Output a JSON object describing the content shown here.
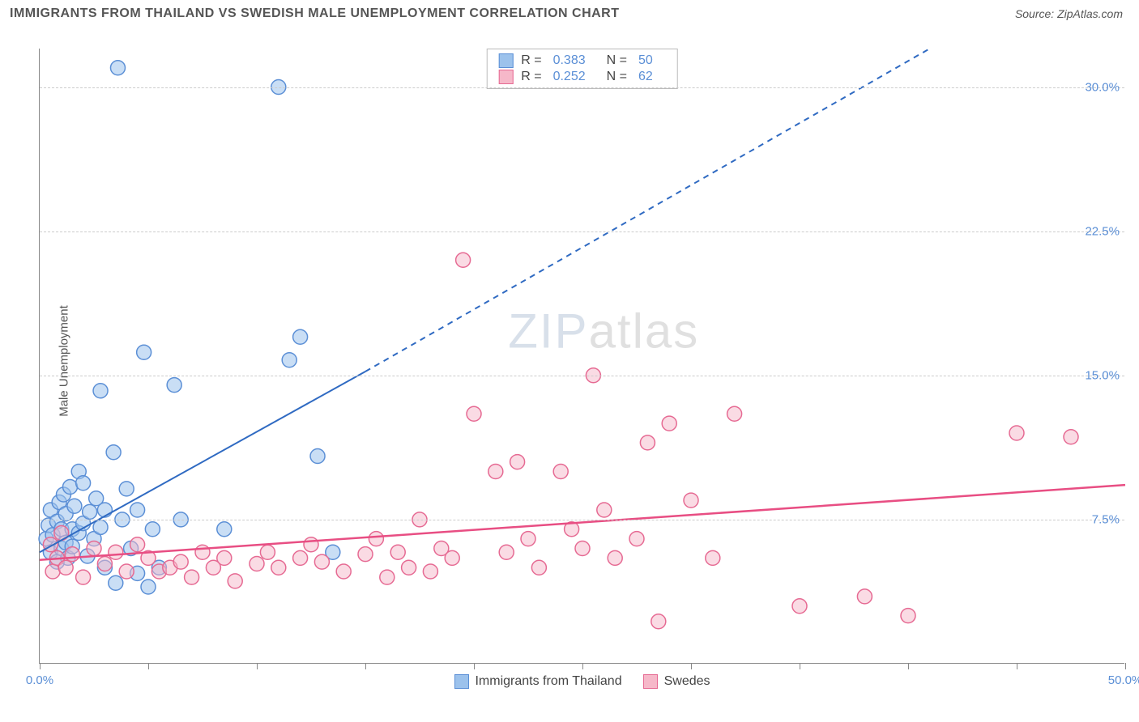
{
  "title": "IMMIGRANTS FROM THAILAND VS SWEDISH MALE UNEMPLOYMENT CORRELATION CHART",
  "source": "Source: ZipAtlas.com",
  "y_axis_label": "Male Unemployment",
  "watermark_a": "ZIP",
  "watermark_b": "atlas",
  "chart": {
    "type": "scatter",
    "xlim": [
      0,
      50
    ],
    "ylim": [
      0,
      32
    ],
    "x_ticks": [
      0,
      5,
      10,
      15,
      20,
      25,
      30,
      35,
      40,
      45,
      50
    ],
    "x_tick_labels": {
      "0": "0.0%",
      "50": "50.0%"
    },
    "y_grid": [
      7.5,
      15.0,
      22.5,
      30.0
    ],
    "y_tick_labels": [
      "7.5%",
      "15.0%",
      "22.5%",
      "30.0%"
    ],
    "background_color": "#ffffff",
    "grid_color": "#cccccc",
    "axis_color": "#888888",
    "marker_radius": 9,
    "marker_stroke_width": 1.5,
    "series": [
      {
        "name": "Immigrants from Thailand",
        "R": "0.383",
        "N": "50",
        "fill": "#9cc2ec",
        "stroke": "#5b8fd6",
        "fill_opacity": 0.55,
        "trend": {
          "solid": [
            [
              0,
              5.8
            ],
            [
              15,
              15.2
            ]
          ],
          "dashed": [
            [
              15,
              15.2
            ],
            [
              41,
              32.0
            ]
          ],
          "color": "#2f6ac2",
          "width": 2
        },
        "points": [
          [
            0.3,
            6.5
          ],
          [
            0.4,
            7.2
          ],
          [
            0.5,
            5.8
          ],
          [
            0.5,
            8.0
          ],
          [
            0.6,
            6.7
          ],
          [
            0.8,
            7.4
          ],
          [
            0.8,
            5.3
          ],
          [
            0.9,
            8.4
          ],
          [
            1.0,
            7.0
          ],
          [
            1.0,
            6.0
          ],
          [
            1.1,
            8.8
          ],
          [
            1.2,
            7.8
          ],
          [
            1.2,
            6.3
          ],
          [
            1.3,
            5.5
          ],
          [
            1.4,
            9.2
          ],
          [
            1.5,
            7.0
          ],
          [
            1.5,
            6.1
          ],
          [
            1.6,
            8.2
          ],
          [
            1.8,
            10.0
          ],
          [
            1.8,
            6.8
          ],
          [
            2.0,
            7.3
          ],
          [
            2.0,
            9.4
          ],
          [
            2.2,
            5.6
          ],
          [
            2.3,
            7.9
          ],
          [
            2.5,
            6.5
          ],
          [
            2.6,
            8.6
          ],
          [
            2.8,
            7.1
          ],
          [
            2.8,
            14.2
          ],
          [
            3.0,
            8.0
          ],
          [
            3.0,
            5.0
          ],
          [
            3.4,
            11.0
          ],
          [
            3.5,
            4.2
          ],
          [
            3.6,
            31.0
          ],
          [
            3.8,
            7.5
          ],
          [
            4.0,
            9.1
          ],
          [
            4.2,
            6.0
          ],
          [
            4.5,
            4.7
          ],
          [
            4.5,
            8.0
          ],
          [
            4.8,
            16.2
          ],
          [
            5.0,
            4.0
          ],
          [
            5.2,
            7.0
          ],
          [
            5.5,
            5.0
          ],
          [
            6.2,
            14.5
          ],
          [
            6.5,
            7.5
          ],
          [
            8.5,
            7.0
          ],
          [
            11.0,
            30.0
          ],
          [
            11.5,
            15.8
          ],
          [
            12.0,
            17.0
          ],
          [
            12.8,
            10.8
          ],
          [
            13.5,
            5.8
          ]
        ]
      },
      {
        "name": "Swedes",
        "R": "0.252",
        "N": "62",
        "fill": "#f6b8c9",
        "stroke": "#e66a93",
        "fill_opacity": 0.5,
        "trend": {
          "solid": [
            [
              0,
              5.4
            ],
            [
              50,
              9.3
            ]
          ],
          "color": "#e84e83",
          "width": 2.5
        },
        "points": [
          [
            0.5,
            6.2
          ],
          [
            0.6,
            4.8
          ],
          [
            0.8,
            5.5
          ],
          [
            1.0,
            6.8
          ],
          [
            1.2,
            5.0
          ],
          [
            1.5,
            5.7
          ],
          [
            2.0,
            4.5
          ],
          [
            2.5,
            6.0
          ],
          [
            3.0,
            5.2
          ],
          [
            3.5,
            5.8
          ],
          [
            4.0,
            4.8
          ],
          [
            4.5,
            6.2
          ],
          [
            5.0,
            5.5
          ],
          [
            5.5,
            4.8
          ],
          [
            6.0,
            5.0
          ],
          [
            6.5,
            5.3
          ],
          [
            7.0,
            4.5
          ],
          [
            7.5,
            5.8
          ],
          [
            8.0,
            5.0
          ],
          [
            8.5,
            5.5
          ],
          [
            9.0,
            4.3
          ],
          [
            10.0,
            5.2
          ],
          [
            10.5,
            5.8
          ],
          [
            11.0,
            5.0
          ],
          [
            12.0,
            5.5
          ],
          [
            12.5,
            6.2
          ],
          [
            13.0,
            5.3
          ],
          [
            14.0,
            4.8
          ],
          [
            15.0,
            5.7
          ],
          [
            15.5,
            6.5
          ],
          [
            16.0,
            4.5
          ],
          [
            16.5,
            5.8
          ],
          [
            17.0,
            5.0
          ],
          [
            17.5,
            7.5
          ],
          [
            18.0,
            4.8
          ],
          [
            18.5,
            6.0
          ],
          [
            19.5,
            21.0
          ],
          [
            19.0,
            5.5
          ],
          [
            20.0,
            13.0
          ],
          [
            21.0,
            10.0
          ],
          [
            21.5,
            5.8
          ],
          [
            22.0,
            10.5
          ],
          [
            22.5,
            6.5
          ],
          [
            23.0,
            5.0
          ],
          [
            24.0,
            10.0
          ],
          [
            24.5,
            7.0
          ],
          [
            25.0,
            6.0
          ],
          [
            25.5,
            15.0
          ],
          [
            26.0,
            8.0
          ],
          [
            26.5,
            5.5
          ],
          [
            27.5,
            6.5
          ],
          [
            28.0,
            11.5
          ],
          [
            28.5,
            2.2
          ],
          [
            29.0,
            12.5
          ],
          [
            30.0,
            8.5
          ],
          [
            31.0,
            5.5
          ],
          [
            32.0,
            13.0
          ],
          [
            35.0,
            3.0
          ],
          [
            38.0,
            3.5
          ],
          [
            40.0,
            2.5
          ],
          [
            45.0,
            12.0
          ],
          [
            47.5,
            11.8
          ]
        ]
      }
    ]
  },
  "legend_top": {
    "r_label": "R =",
    "n_label": "N ="
  }
}
